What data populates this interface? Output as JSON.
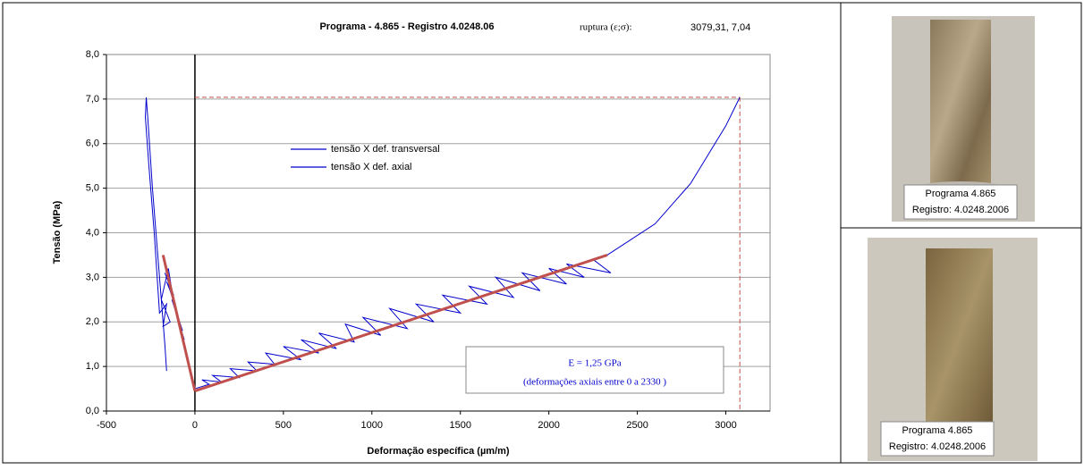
{
  "chart_data": {
    "type": "line",
    "title": "Programa - 4.865 - Registro  4.0248.06",
    "x_label": "Deformação específica (µm/m)",
    "y_label": "Tensão (MPa)",
    "xlim": [
      -500,
      3250
    ],
    "ylim": [
      0,
      8
    ],
    "xticks": [
      -500,
      0,
      500,
      1000,
      1500,
      2000,
      2500,
      3000
    ],
    "yticks": [
      {
        "value": 0,
        "label": "0,0"
      },
      {
        "value": 1,
        "label": "1,0"
      },
      {
        "value": 2,
        "label": "2,0"
      },
      {
        "value": 3,
        "label": "3,0"
      },
      {
        "value": 4,
        "label": "4,0"
      },
      {
        "value": 5,
        "label": "5,0"
      },
      {
        "value": 6,
        "label": "6,0"
      },
      {
        "value": 7,
        "label": "7,0"
      },
      {
        "value": 8,
        "label": "8,0"
      }
    ],
    "grid": true,
    "series": [
      {
        "name": "tensão X def. transversal",
        "color": "#0000cc",
        "x": [
          0,
          -20,
          -40,
          -30,
          -60,
          -50,
          -80,
          -60,
          -100,
          -70,
          -110,
          -90,
          -130,
          -100,
          -140,
          -110,
          -160,
          -120,
          -170,
          -130,
          -150,
          -190,
          -140,
          -180,
          -160,
          -200,
          -230,
          -260,
          -280,
          -275,
          -265,
          -240,
          -210,
          -190,
          -170,
          -160
        ],
        "values": [
          0.5,
          0.8,
          1.2,
          1.0,
          1.5,
          1.3,
          1.8,
          1.6,
          2.1,
          1.8,
          2.3,
          2.0,
          2.5,
          2.2,
          2.7,
          2.4,
          2.9,
          2.6,
          3.1,
          2.7,
          3.2,
          2.5,
          2.0,
          1.9,
          2.4,
          2.2,
          4.0,
          5.5,
          6.6,
          7.04,
          6.5,
          5.0,
          3.5,
          2.5,
          1.5,
          0.9
        ]
      },
      {
        "name": "tensão X def. axial",
        "color": "#0000cc",
        "x": [
          0,
          80,
          40,
          150,
          100,
          250,
          200,
          350,
          300,
          450,
          400,
          600,
          500,
          700,
          600,
          800,
          700,
          900,
          850,
          1050,
          950,
          1200,
          1100,
          1350,
          1250,
          1500,
          1400,
          1650,
          1550,
          1800,
          1700,
          1950,
          1850,
          2100,
          2000,
          2200,
          2100,
          2350,
          2250,
          2330,
          2600,
          2800,
          3000,
          3079
        ],
        "values": [
          0.5,
          0.6,
          0.7,
          0.65,
          0.8,
          0.75,
          0.95,
          0.9,
          1.1,
          1.05,
          1.3,
          1.15,
          1.45,
          1.3,
          1.6,
          1.4,
          1.75,
          1.55,
          1.95,
          1.7,
          2.1,
          1.85,
          2.3,
          2.0,
          2.4,
          2.2,
          2.6,
          2.4,
          2.8,
          2.55,
          3.0,
          2.7,
          3.1,
          2.85,
          3.2,
          3.0,
          3.3,
          3.1,
          3.4,
          3.5,
          4.2,
          5.1,
          6.4,
          7.04
        ]
      }
    ],
    "trend_lines": [
      {
        "color": "#c0504d",
        "x": [
          -180,
          0
        ],
        "values": [
          3.5,
          0.45
        ]
      },
      {
        "color": "#c0504d",
        "x": [
          0,
          2330
        ],
        "values": [
          0.45,
          3.5
        ]
      }
    ],
    "rupture": {
      "label": "ruptura (ε;σ):",
      "value_label": "3079,31, 7,04",
      "x": 3079.31,
      "y": 7.04
    },
    "annotation": {
      "title": "E = 1,25 GPa",
      "subtitle": "(deformações axiais entre 0 a 2330 )"
    }
  },
  "photos": [
    {
      "caption": [
        "Programa 4.865",
        "Registro: 4.0248.2006"
      ]
    },
    {
      "caption": [
        "Programa 4.865",
        "Registro: 4.0248.2006"
      ]
    }
  ]
}
